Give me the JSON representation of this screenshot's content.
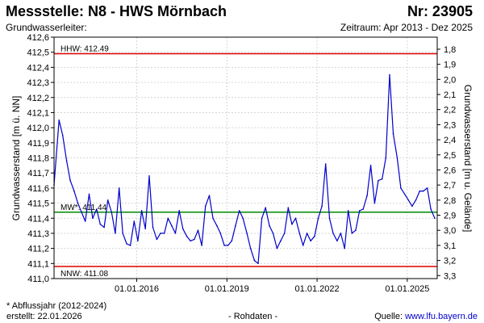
{
  "header": {
    "title": "Messstelle: N8 - HWS Mörnbach",
    "number": "Nr: 23905",
    "aquifer_label": "Grundwasserleiter:",
    "period": "Zeitraum: Apr 2013 - Dez 2025"
  },
  "chart_data": {
    "type": "line",
    "ylabel": "Grundwasserstand [m ü. NN]",
    "y2label": "Grundwasserstand [m u. Gelände]",
    "ylim": [
      411.0,
      412.6
    ],
    "y_ticks": [
      "411,0",
      "411,1",
      "411,2",
      "411,3",
      "411,4",
      "411,5",
      "411,6",
      "411,7",
      "411,8",
      "411,9",
      "412,0",
      "412,1",
      "412,2",
      "412,3",
      "412,4",
      "412,5",
      "412,6"
    ],
    "y2lim": [
      3.32,
      1.72
    ],
    "y2_ticks": [
      "1,8",
      "1,9",
      "2,0",
      "2,1",
      "2,2",
      "2,3",
      "2,4",
      "2,5",
      "2,6",
      "2,7",
      "2,8",
      "2,9",
      "3,0",
      "3,1",
      "3,2",
      "3,3"
    ],
    "xlim": [
      "2013-04-01",
      "2025-12-31"
    ],
    "x_ticks": [
      "01.01.2016",
      "01.01.2019",
      "01.01.2022",
      "01.01.2025"
    ],
    "grid": true,
    "line_color": "#0000cc",
    "reference_lines": [
      {
        "label": "HHW: 412.49",
        "value": 412.49,
        "color": "#dd0000"
      },
      {
        "label": "MW*: 411.44",
        "value": 411.44,
        "color": "#008800"
      },
      {
        "label": "NNW: 411.08",
        "value": 411.08,
        "color": "#dd0000"
      }
    ],
    "series": [
      {
        "x": [
          "2013-04-01",
          "2013-06-01",
          "2013-07-15",
          "2013-09-01",
          "2013-10-15",
          "2013-12-01",
          "2014-01-15",
          "2014-03-01",
          "2014-04-15",
          "2014-06-01",
          "2014-07-15",
          "2014-09-01",
          "2014-10-15",
          "2014-12-01",
          "2015-01-15",
          "2015-03-01",
          "2015-04-15",
          "2015-06-01",
          "2015-07-15",
          "2015-09-01",
          "2015-10-15",
          "2015-12-01",
          "2016-01-15",
          "2016-03-01",
          "2016-04-15",
          "2016-06-01",
          "2016-07-15",
          "2016-09-01",
          "2016-10-15",
          "2016-12-01",
          "2017-01-15",
          "2017-03-01",
          "2017-04-15",
          "2017-06-01",
          "2017-07-15",
          "2017-09-01",
          "2017-10-15",
          "2017-12-01",
          "2018-01-15",
          "2018-03-01",
          "2018-04-15",
          "2018-06-01",
          "2018-07-15",
          "2018-09-01",
          "2018-10-15",
          "2018-12-01",
          "2019-01-15",
          "2019-03-01",
          "2019-04-15",
          "2019-06-01",
          "2019-07-15",
          "2019-09-01",
          "2019-10-15",
          "2019-12-01",
          "2020-01-15",
          "2020-03-01",
          "2020-04-15",
          "2020-06-01",
          "2020-07-15",
          "2020-09-01",
          "2020-10-15",
          "2020-12-01",
          "2021-01-15",
          "2021-03-01",
          "2021-04-15",
          "2021-06-01",
          "2021-07-15",
          "2021-09-01",
          "2021-10-15",
          "2021-12-01",
          "2022-01-15",
          "2022-03-01",
          "2022-04-15",
          "2022-06-01",
          "2022-07-15",
          "2022-09-01",
          "2022-10-15",
          "2022-12-01",
          "2023-01-15",
          "2023-03-01",
          "2023-04-15",
          "2023-06-01",
          "2023-07-15",
          "2023-09-01",
          "2023-10-15",
          "2023-12-01",
          "2024-01-15",
          "2024-03-01",
          "2024-04-15",
          "2024-06-01",
          "2024-07-15",
          "2024-09-01",
          "2024-10-15",
          "2024-12-01",
          "2025-01-15",
          "2025-03-01",
          "2025-04-15",
          "2025-06-01",
          "2025-07-15",
          "2025-09-01",
          "2025-10-15",
          "2025-12-01"
        ],
        "y": [
          411.62,
          412.05,
          411.95,
          411.78,
          411.65,
          411.58,
          411.5,
          411.44,
          411.38,
          411.56,
          411.4,
          411.46,
          411.36,
          411.34,
          411.52,
          411.44,
          411.3,
          411.6,
          411.3,
          411.23,
          411.22,
          411.38,
          411.25,
          411.45,
          411.33,
          411.68,
          411.34,
          411.26,
          411.3,
          411.3,
          411.4,
          411.35,
          411.3,
          411.45,
          411.33,
          411.28,
          411.25,
          411.26,
          411.32,
          411.22,
          411.48,
          411.55,
          411.4,
          411.35,
          411.3,
          411.22,
          411.22,
          411.25,
          411.35,
          411.45,
          411.4,
          411.3,
          411.2,
          411.12,
          411.1,
          411.4,
          411.47,
          411.35,
          411.3,
          411.2,
          411.25,
          411.3,
          411.47,
          411.36,
          411.4,
          411.3,
          411.22,
          411.3,
          411.25,
          411.28,
          411.4,
          411.48,
          411.76,
          411.4,
          411.3,
          411.25,
          411.3,
          411.2,
          411.45,
          411.3,
          411.32,
          411.45,
          411.46,
          411.55,
          411.75,
          411.5,
          411.65,
          411.66,
          411.8,
          412.35,
          411.96,
          411.8,
          411.6,
          411.56,
          411.52,
          411.48,
          411.52,
          411.58,
          411.58,
          411.6,
          411.46,
          411.4
        ]
      }
    ]
  },
  "footer": {
    "note": "* Abflussjahr (2012-2024)",
    "created": "erstellt:  22.01.2026",
    "raw": "- Rohdaten -",
    "source_label": "Quelle: ",
    "source_link": "www.lfu.bayern.de"
  }
}
